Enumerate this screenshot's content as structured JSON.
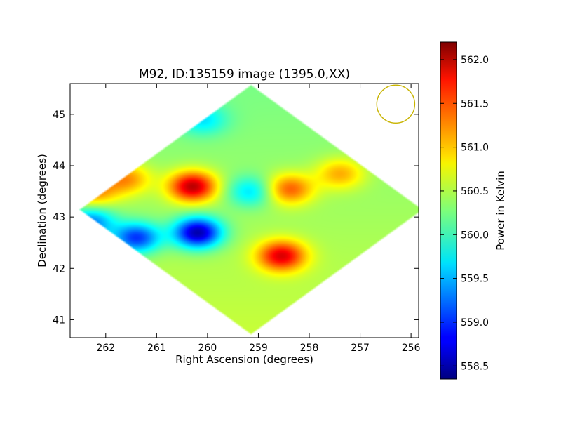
{
  "chart_data": {
    "type": "heatmap",
    "title": "M92, ID:135159 image (1395.0,XX)",
    "xlabel": "Right Ascension (degrees)",
    "ylabel": "Declination (degrees)",
    "xlim": [
      262.7,
      255.85
    ],
    "ylim": [
      40.65,
      45.6
    ],
    "x_ticks": [
      262,
      261,
      260,
      259,
      258,
      257,
      256
    ],
    "y_ticks": [
      41,
      42,
      43,
      44,
      45
    ],
    "x_tick_labels": [
      "262",
      "261",
      "260",
      "259",
      "258",
      "257",
      "256"
    ],
    "y_tick_labels": [
      "41",
      "42",
      "43",
      "44",
      "45"
    ],
    "colormap": "jet",
    "colorbar": {
      "label": "Power in Kelvin",
      "range": [
        558.35,
        562.2
      ],
      "ticks": [
        558.5,
        559.0,
        559.5,
        560.0,
        560.5,
        561.0,
        561.5,
        562.0
      ],
      "tick_labels": [
        "558.5",
        "559.0",
        "559.5",
        "560.0",
        "560.5",
        "561.0",
        "561.5",
        "562.0"
      ]
    },
    "footprint": {
      "shape": "diamond",
      "center": [
        259.15,
        43.15
      ],
      "half_width_deg": 3.4,
      "half_height_deg": 2.45,
      "background_value": 560.4
    },
    "features": [
      {
        "kind": "hot-spot",
        "x": 260.3,
        "y": 43.6,
        "value": 562.0
      },
      {
        "kind": "hot-spot",
        "x": 258.55,
        "y": 42.25,
        "value": 561.8
      },
      {
        "kind": "hot-spot",
        "x": 258.4,
        "y": 43.55,
        "value": 561.4
      },
      {
        "kind": "hot-spot",
        "x": 261.6,
        "y": 43.75,
        "value": 561.2
      },
      {
        "kind": "hot-spot",
        "x": 262.25,
        "y": 43.5,
        "value": 561.2
      },
      {
        "kind": "hot-spot",
        "x": 257.4,
        "y": 43.85,
        "value": 561.1
      },
      {
        "kind": "cold-spot",
        "x": 260.2,
        "y": 42.7,
        "value": 558.5
      },
      {
        "kind": "cold-spot",
        "x": 261.4,
        "y": 42.6,
        "value": 559.0
      },
      {
        "kind": "cold-spot",
        "x": 262.3,
        "y": 42.9,
        "value": 559.3
      },
      {
        "kind": "cold-spot",
        "x": 259.15,
        "y": 43.5,
        "value": 559.7
      },
      {
        "kind": "cold-spot",
        "x": 260.1,
        "y": 44.9,
        "value": 559.8
      }
    ],
    "beam_circle": {
      "x": 256.3,
      "y": 45.2,
      "radius_deg": 0.37,
      "color": "#c8b400"
    },
    "grid": false,
    "legend": "none"
  }
}
